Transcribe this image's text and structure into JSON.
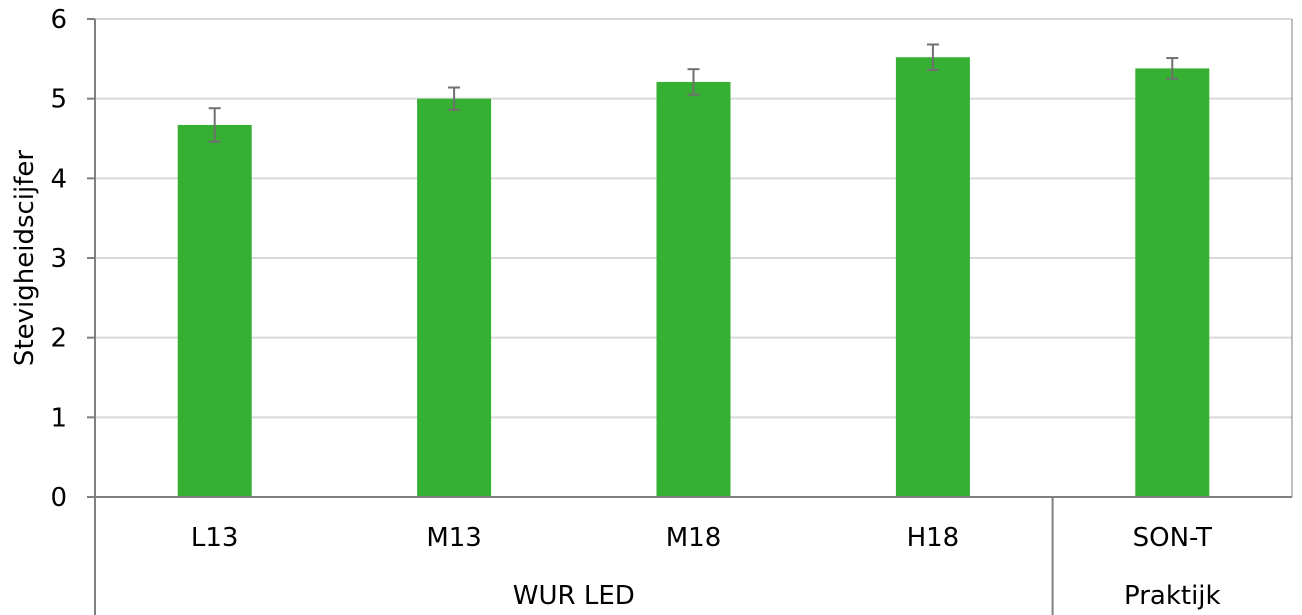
{
  "chart_data": {
    "type": "bar",
    "categories": [
      "L13",
      "M13",
      "M18",
      "H18",
      "SON-T"
    ],
    "values": [
      4.67,
      5.0,
      5.21,
      5.52,
      5.38
    ],
    "errors": [
      0.21,
      0.14,
      0.16,
      0.16,
      0.13
    ],
    "groups": [
      {
        "label": "WUR LED",
        "start": 0,
        "end": 3
      },
      {
        "label": "Praktijk",
        "start": 4,
        "end": 4
      }
    ],
    "ylabel": "Stevigheidscijfer",
    "xlabel": "",
    "ylim": [
      0,
      6
    ],
    "yticks": [
      0,
      1,
      2,
      3,
      4,
      5,
      6
    ],
    "grid": true,
    "colors": {
      "bar": "#35b033",
      "error_bar": "#707070",
      "grid": "#d9d9d9",
      "axis": "#808080"
    }
  }
}
